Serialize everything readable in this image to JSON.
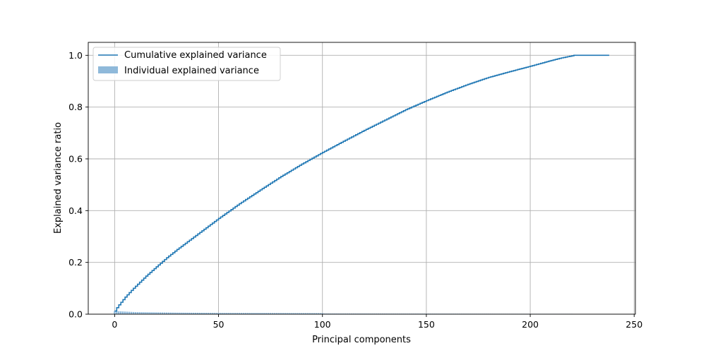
{
  "chart_data": {
    "type": "line",
    "title": "",
    "xlabel": "Principal components",
    "ylabel": "Explained variance ratio",
    "xlim": [
      -12.7,
      250.6
    ],
    "ylim": [
      0.0,
      1.05
    ],
    "x_ticks": [
      0,
      50,
      100,
      150,
      200,
      250
    ],
    "x_tick_labels": [
      "0",
      "50",
      "100",
      "150",
      "200",
      "250"
    ],
    "y_ticks": [
      0.0,
      0.2,
      0.4,
      0.6,
      0.8,
      1.0
    ],
    "y_tick_labels": [
      "0.0",
      "0.2",
      "0.4",
      "0.6",
      "0.8",
      "1.0"
    ],
    "grid": true,
    "legend_position": "upper-left",
    "n_components": 239,
    "series": [
      {
        "name": "Cumulative explained variance",
        "kind": "step",
        "color": "#1f77b4",
        "x": [
          0,
          1,
          2,
          3,
          5,
          8,
          10,
          15,
          20,
          25,
          30,
          40,
          50,
          60,
          70,
          80,
          90,
          100,
          110,
          120,
          130,
          140,
          150,
          160,
          170,
          180,
          190,
          200,
          210,
          215,
          220,
          221,
          238
        ],
        "y": [
          0.012,
          0.025,
          0.036,
          0.046,
          0.066,
          0.092,
          0.108,
          0.147,
          0.183,
          0.218,
          0.25,
          0.31,
          0.37,
          0.427,
          0.48,
          0.532,
          0.58,
          0.625,
          0.668,
          0.71,
          0.75,
          0.79,
          0.825,
          0.858,
          0.888,
          0.915,
          0.937,
          0.958,
          0.98,
          0.99,
          0.998,
          1.0,
          1.0
        ]
      },
      {
        "name": "Individual explained variance",
        "kind": "bar",
        "color": "#8fb9da",
        "x": [
          0,
          5,
          10,
          20,
          30,
          50,
          80,
          100,
          101,
          150,
          200,
          220,
          221
        ],
        "y": [
          0.012,
          0.01,
          0.008,
          0.007,
          0.006,
          0.005,
          0.0045,
          0.004,
          0.0025,
          0.002,
          0.0015,
          0.0015,
          0.0
        ]
      }
    ]
  }
}
